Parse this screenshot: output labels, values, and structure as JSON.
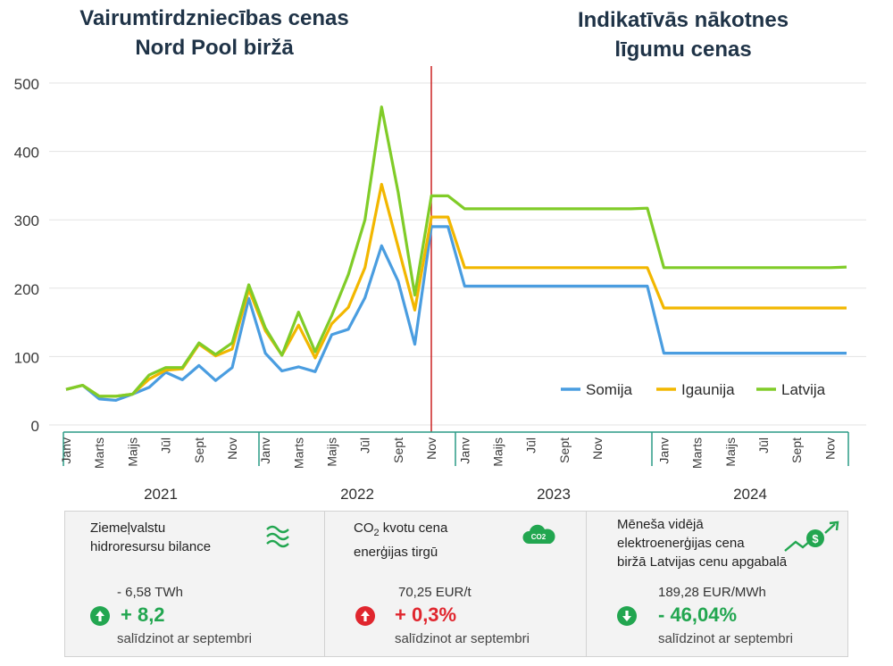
{
  "titles": {
    "left": "Vairumtirdzniecības cenas\nNord Pool biržā",
    "right": "Indikatīvās nākotnes\nlīgumu cenas"
  },
  "chart_data": {
    "type": "line",
    "ylim": [
      0,
      500
    ],
    "yticks": [
      0,
      100,
      200,
      300,
      400,
      500
    ],
    "grid": true,
    "legend_position": "bottom-right",
    "x_month_labels": [
      "Janv",
      "Marts",
      "Maijs",
      "Jūl",
      "Sept",
      "Nov",
      "Janv",
      "Marts",
      "Maijs",
      "Jūl",
      "Sept",
      "Nov",
      "Janv",
      "Maijs",
      "Jūl",
      "Sept",
      "Nov",
      "Janv",
      "Marts",
      "Maijs",
      "Jūl",
      "Sept",
      "Nov"
    ],
    "year_labels": [
      "2021",
      "2022",
      "2023",
      "2024"
    ],
    "x": [
      0,
      1,
      2,
      3,
      4,
      5,
      6,
      7,
      8,
      9,
      10,
      11,
      12,
      13,
      14,
      15,
      16,
      17,
      18,
      19,
      20,
      21,
      22,
      23,
      24,
      25,
      26,
      27,
      28,
      29,
      30,
      31,
      32,
      33,
      34,
      35,
      36,
      37,
      38,
      39,
      40,
      41,
      42,
      43,
      44,
      45,
      46,
      47
    ],
    "series": [
      {
        "name": "Somija",
        "color": "#4a9de0",
        "values": [
          52,
          58,
          38,
          36,
          45,
          55,
          77,
          66,
          87,
          65,
          84,
          185,
          105,
          79,
          85,
          78,
          132,
          140,
          186,
          262,
          210,
          118,
          290,
          290,
          203,
          203,
          203,
          203,
          203,
          203,
          203,
          203,
          203,
          203,
          203,
          203,
          105,
          105,
          105,
          105,
          105,
          105,
          105,
          105,
          105,
          105,
          105,
          105
        ]
      },
      {
        "name": "Igaunija",
        "color": "#f2b700",
        "values": [
          52,
          58,
          42,
          42,
          45,
          67,
          80,
          82,
          118,
          101,
          111,
          198,
          138,
          102,
          146,
          98,
          148,
          172,
          230,
          352,
          260,
          168,
          304,
          304,
          230,
          230,
          230,
          230,
          230,
          230,
          230,
          230,
          230,
          230,
          230,
          230,
          171,
          171,
          171,
          171,
          171,
          171,
          171,
          171,
          171,
          171,
          171,
          171
        ]
      },
      {
        "name": "Latvija",
        "color": "#80cc28",
        "values": [
          52,
          58,
          42,
          42,
          45,
          73,
          84,
          84,
          120,
          103,
          120,
          205,
          142,
          102,
          165,
          107,
          160,
          220,
          300,
          465,
          340,
          190,
          335,
          335,
          316,
          316,
          316,
          316,
          316,
          316,
          316,
          316,
          316,
          316,
          316,
          317,
          230,
          230,
          230,
          230,
          230,
          230,
          230,
          230,
          230,
          230,
          230,
          231
        ]
      }
    ]
  },
  "cards": [
    {
      "title": "Ziemeļvalstu\nhidroresursu bilance",
      "icon": "water-waves-icon",
      "sub": "- 6,58 TWh",
      "change": "+ 8,2",
      "direction": "up",
      "status_color": "#22a650",
      "note": "salīdzinot ar septembri"
    },
    {
      "title_pre": "CO",
      "title_sub": "2",
      "title_post": " kvotu cena\nenerģijas tirgū",
      "icon": "co2-cloud-icon",
      "icon_text": "CO2",
      "sub": "70,25 EUR/t",
      "change": "+ 0,3%",
      "direction": "up",
      "status_color": "#e0262e",
      "note": "salīdzinot ar septembri"
    },
    {
      "title": "Mēneša vidējā\nelektroenerģijas cena\nbiržā Latvijas cenu apgabalā",
      "icon": "price-trend-icon",
      "sub": "189,28 EUR/MWh",
      "change": "- 46,04%",
      "direction": "down",
      "status_color": "#22a650",
      "note": "salīdzinot ar septembri"
    }
  ]
}
